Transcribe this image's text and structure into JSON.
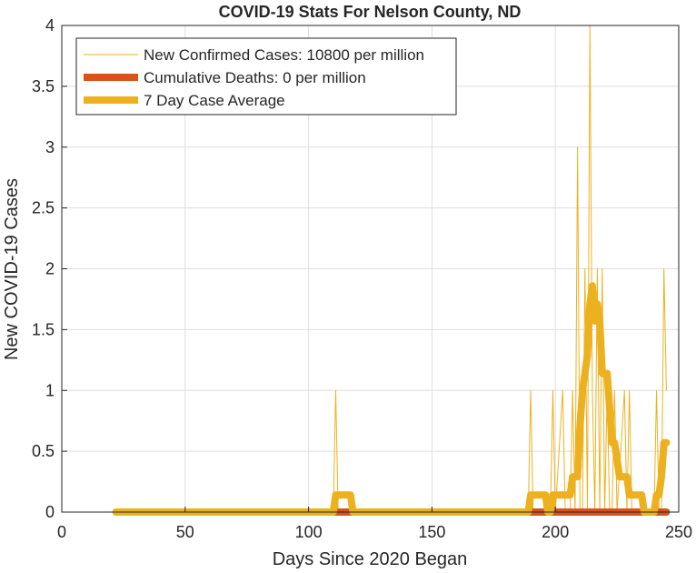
{
  "chart_data": {
    "type": "line",
    "title": "COVID-19 Stats For Nelson County, ND",
    "xlabel": "Days Since 2020 Began",
    "ylabel": "New COVID-19 Cases",
    "xlim": [
      0,
      250
    ],
    "ylim": [
      0,
      4
    ],
    "xticks": [
      0,
      50,
      100,
      150,
      200,
      250
    ],
    "yticks": [
      0,
      0.5,
      1,
      1.5,
      2,
      2.5,
      3,
      3.5,
      4
    ],
    "xtick_labels": [
      "0",
      "50",
      "100",
      "150",
      "200",
      "250"
    ],
    "ytick_labels": [
      "0",
      "0.5",
      "1",
      "1.5",
      "2",
      "2.5",
      "3",
      "3.5",
      "4"
    ],
    "grid": true,
    "legend_position": "top-left",
    "series": [
      {
        "name": "New Confirmed Cases: 10800 per million",
        "color": "#EDB120",
        "style": "thin",
        "points": [
          [
            22,
            0
          ],
          [
            109,
            0
          ],
          [
            110,
            0
          ],
          [
            111,
            1
          ],
          [
            112,
            0
          ],
          [
            189,
            0
          ],
          [
            190,
            1
          ],
          [
            191,
            0
          ],
          [
            198,
            0
          ],
          [
            199,
            1
          ],
          [
            200,
            0
          ],
          [
            203,
            1
          ],
          [
            204,
            0
          ],
          [
            206,
            0
          ],
          [
            207,
            1
          ],
          [
            208,
            0
          ],
          [
            209,
            3
          ],
          [
            210,
            0
          ],
          [
            211,
            0
          ],
          [
            212,
            2
          ],
          [
            213,
            0
          ],
          [
            214,
            4
          ],
          [
            215,
            1
          ],
          [
            216,
            0
          ],
          [
            217,
            2
          ],
          [
            218,
            0
          ],
          [
            219,
            2
          ],
          [
            220,
            0
          ],
          [
            221,
            1
          ],
          [
            222,
            0
          ],
          [
            223,
            0
          ],
          [
            224,
            1
          ],
          [
            225,
            0
          ],
          [
            228,
            1
          ],
          [
            229,
            0
          ],
          [
            230,
            1
          ],
          [
            231,
            0
          ],
          [
            240,
            0
          ],
          [
            241,
            1
          ],
          [
            242,
            0
          ],
          [
            243,
            0
          ],
          [
            244,
            2
          ],
          [
            245,
            1
          ]
        ]
      },
      {
        "name": "Cumulative Deaths: 0 per million",
        "color": "#D95319",
        "style": "thick",
        "points": [
          [
            22,
            0
          ],
          [
            245,
            0
          ]
        ]
      },
      {
        "name": "7 Day Case Average",
        "color": "#EDB120",
        "style": "thick",
        "points": [
          [
            22,
            0
          ],
          [
            110,
            0
          ],
          [
            111,
            0.14
          ],
          [
            117,
            0.14
          ],
          [
            118,
            0
          ],
          [
            189,
            0
          ],
          [
            190,
            0.14
          ],
          [
            196,
            0.14
          ],
          [
            197,
            0
          ],
          [
            198,
            0
          ],
          [
            199,
            0.14
          ],
          [
            203,
            0.14
          ],
          [
            204,
            0.14
          ],
          [
            205,
            0.14
          ],
          [
            206,
            0.14
          ],
          [
            207,
            0.29
          ],
          [
            209,
            0.29
          ],
          [
            210,
            0.71
          ],
          [
            211,
            1.0
          ],
          [
            213,
            1.29
          ],
          [
            214,
            1.71
          ],
          [
            215,
            1.86
          ],
          [
            216,
            1.57
          ],
          [
            217,
            1.71
          ],
          [
            218,
            1.57
          ],
          [
            219,
            1.14
          ],
          [
            220,
            1.14
          ],
          [
            221,
            1.14
          ],
          [
            222,
            0.86
          ],
          [
            223,
            0.57
          ],
          [
            224,
            0.57
          ],
          [
            225,
            0.43
          ],
          [
            226,
            0.29
          ],
          [
            228,
            0.29
          ],
          [
            229,
            0.29
          ],
          [
            230,
            0.14
          ],
          [
            233,
            0.14
          ],
          [
            234,
            0.14
          ],
          [
            235,
            0.14
          ],
          [
            236,
            0
          ],
          [
            240,
            0
          ],
          [
            241,
            0.14
          ],
          [
            242,
            0.14
          ],
          [
            243,
            0.29
          ],
          [
            244,
            0.57
          ],
          [
            245,
            0.57
          ]
        ]
      }
    ]
  }
}
